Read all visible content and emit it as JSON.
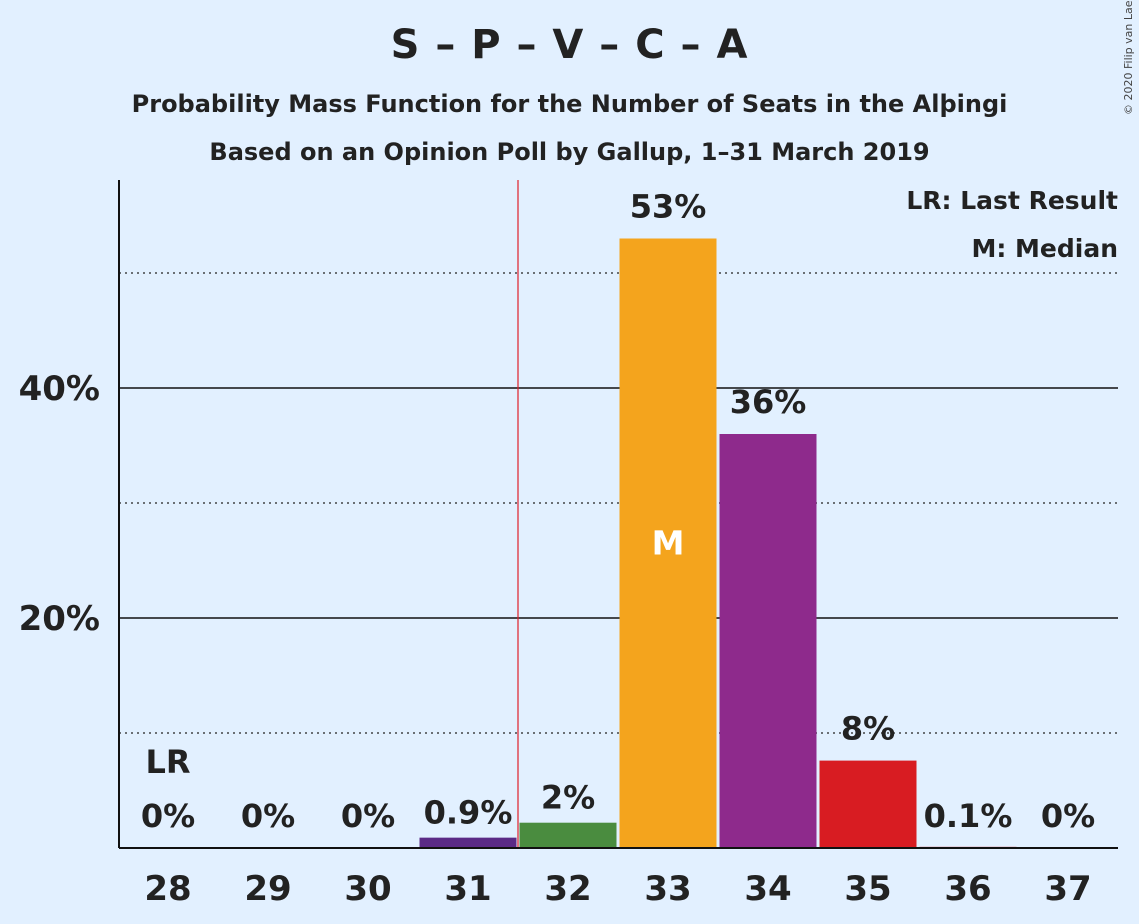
{
  "title": "S – P – V – C – A",
  "subtitle1": "Probability Mass Function for the Number of Seats in the Alþingi",
  "subtitle2": "Based on an Opinion Poll by Gallup, 1–31 March 2019",
  "copyright": "© 2020 Filip van Laenen",
  "legend": {
    "last_result": "LR: Last Result",
    "median": "M: Median"
  },
  "chart_data": {
    "type": "bar",
    "categories": [
      "28",
      "29",
      "30",
      "31",
      "32",
      "33",
      "34",
      "35",
      "36",
      "37"
    ],
    "values": [
      0,
      0,
      0,
      0.9,
      2.2,
      53,
      36,
      7.6,
      0.1,
      0
    ],
    "value_labels": [
      "0%",
      "0%",
      "0%",
      "0.9%",
      "2%",
      "53%",
      "36%",
      "8%",
      "0.1%",
      "0%"
    ],
    "colors": [
      "#5b2a86",
      "#5b2a86",
      "#5b2a86",
      "#5b2a86",
      "#4a8c3f",
      "#f4a41d",
      "#8e2a8c",
      "#d81c22",
      "#d81c22",
      "#d81c22"
    ],
    "ylim": [
      0,
      58
    ],
    "yticks_major": [
      20,
      40
    ],
    "ytick_labels": [
      "20%",
      "40%"
    ],
    "yticks_minor": [
      10,
      30,
      50
    ],
    "last_result_category": "28",
    "last_result_label": "LR",
    "majority_line_between": [
      "31",
      "32"
    ],
    "median_category": "33",
    "median_label": "M"
  }
}
